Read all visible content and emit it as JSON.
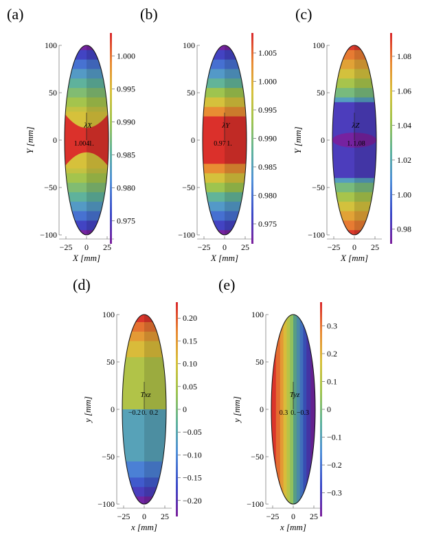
{
  "chart_data": [
    {
      "type": "heatmap",
      "panel_label": "(a)",
      "field": "lambda_X",
      "inset_label": "λX",
      "inset_values": [
        "1.004",
        "1."
      ],
      "xlabel": "X [mm]",
      "ylabel": "Y [mm]",
      "xticks": [
        "−25",
        "0",
        "25"
      ],
      "yticks": [
        "100",
        "50",
        "0",
        "−50",
        "−100"
      ],
      "xlim": [
        -25,
        25
      ],
      "ylim": [
        -100,
        100
      ],
      "colorbar": {
        "ticks": [
          "1.000",
          "0.995",
          "0.990",
          "0.985",
          "0.980",
          "0.975"
        ],
        "tick_values": [
          1.0,
          0.995,
          0.99,
          0.985,
          0.98,
          0.975
        ],
        "range": [
          0.9715,
          1.0035
        ]
      },
      "bands": [
        {
          "y_from": 100,
          "y_to": 95,
          "value": 0.972
        },
        {
          "y_from": 95,
          "y_to": 85,
          "value": 0.9755
        },
        {
          "y_from": 85,
          "y_to": 75,
          "value": 0.979
        },
        {
          "y_from": 75,
          "y_to": 65,
          "value": 0.9825
        },
        {
          "y_from": 65,
          "y_to": 55,
          "value": 0.9855
        },
        {
          "y_from": 55,
          "y_to": 45,
          "value": 0.988
        },
        {
          "y_from": 45,
          "y_to": 35,
          "value": 0.9905
        },
        {
          "y_from": 35,
          "y_to": 30,
          "value": 0.993
        },
        {
          "y_from": 30,
          "y_to": -30,
          "value": 0.9945
        },
        {
          "y_from": -30,
          "y_to": -35,
          "value": 0.993
        },
        {
          "y_from": -35,
          "y_to": -45,
          "value": 0.9905
        },
        {
          "y_from": -45,
          "y_to": -55,
          "value": 0.988
        },
        {
          "y_from": -55,
          "y_to": -65,
          "value": 0.9855
        },
        {
          "y_from": -65,
          "y_to": -75,
          "value": 0.9825
        },
        {
          "y_from": -75,
          "y_to": -85,
          "value": 0.979
        },
        {
          "y_from": -85,
          "y_to": -95,
          "value": 0.9755
        },
        {
          "y_from": -95,
          "y_to": -100,
          "value": 0.972
        }
      ],
      "highlight": {
        "shape": "lens",
        "y_from": 30,
        "y_to": -30,
        "value": 1.003
      }
    },
    {
      "type": "heatmap",
      "panel_label": "(b)",
      "field": "lambda_Y",
      "inset_label": "λY",
      "inset_values": [
        "0.97",
        "1."
      ],
      "xlabel": "X [mm]",
      "ylabel": "",
      "xticks": [
        "−25",
        "0",
        "25"
      ],
      "yticks": [
        "100",
        "50",
        "0",
        "−50",
        "−100"
      ],
      "xlim": [
        -25,
        25
      ],
      "ylim": [
        -100,
        100
      ],
      "colorbar": {
        "ticks": [
          "1.005",
          "1.000",
          "0.995",
          "0.990",
          "0.985",
          "0.980",
          "0.975"
        ],
        "tick_values": [
          1.005,
          1.0,
          0.995,
          0.99,
          0.985,
          0.98,
          0.975
        ],
        "range": [
          0.9715,
          1.0085
        ]
      },
      "bands": [
        {
          "y_from": 100,
          "y_to": 95,
          "value": 0.972
        },
        {
          "y_from": 95,
          "y_to": 85,
          "value": 0.976
        },
        {
          "y_from": 85,
          "y_to": 75,
          "value": 0.98
        },
        {
          "y_from": 75,
          "y_to": 65,
          "value": 0.984
        },
        {
          "y_from": 65,
          "y_to": 55,
          "value": 0.988
        },
        {
          "y_from": 55,
          "y_to": 45,
          "value": 0.993
        },
        {
          "y_from": 45,
          "y_to": 35,
          "value": 0.998
        },
        {
          "y_from": 35,
          "y_to": 25,
          "value": 1.003
        },
        {
          "y_from": 25,
          "y_to": -25,
          "value": 1.008
        },
        {
          "y_from": -25,
          "y_to": -35,
          "value": 1.003
        },
        {
          "y_from": -35,
          "y_to": -45,
          "value": 0.998
        },
        {
          "y_from": -45,
          "y_to": -55,
          "value": 0.993
        },
        {
          "y_from": -55,
          "y_to": -65,
          "value": 0.988
        },
        {
          "y_from": -65,
          "y_to": -75,
          "value": 0.984
        },
        {
          "y_from": -75,
          "y_to": -85,
          "value": 0.98
        },
        {
          "y_from": -85,
          "y_to": -95,
          "value": 0.976
        },
        {
          "y_from": -95,
          "y_to": -100,
          "value": 0.972
        }
      ]
    },
    {
      "type": "heatmap",
      "panel_label": "(c)",
      "field": "lambda_Z",
      "inset_label": "λZ",
      "inset_values": [
        "1.",
        "1.08"
      ],
      "xlabel": "X [mm]",
      "ylabel": "Y [mm]",
      "xticks": [
        "−25",
        "0",
        "25"
      ],
      "yticks": [
        "100",
        "50",
        "0",
        "−50",
        "−100"
      ],
      "xlim": [
        -25,
        25
      ],
      "ylim": [
        -100,
        100
      ],
      "colorbar": {
        "ticks": [
          "1.08",
          "1.06",
          "1.04",
          "1.02",
          "1.00",
          "0.98"
        ],
        "tick_values": [
          1.08,
          1.06,
          1.04,
          1.02,
          1.0,
          0.98
        ],
        "range": [
          0.9715,
          1.0935
        ]
      },
      "bands": [
        {
          "y_from": 100,
          "y_to": 95,
          "value": 1.09
        },
        {
          "y_from": 95,
          "y_to": 85,
          "value": 1.079
        },
        {
          "y_from": 85,
          "y_to": 75,
          "value": 1.069
        },
        {
          "y_from": 75,
          "y_to": 65,
          "value": 1.058
        },
        {
          "y_from": 65,
          "y_to": 55,
          "value": 1.045
        },
        {
          "y_from": 55,
          "y_to": 45,
          "value": 1.032
        },
        {
          "y_from": 45,
          "y_to": 40,
          "value": 1.015
        },
        {
          "y_from": 40,
          "y_to": -40,
          "value": 0.984
        },
        {
          "y_from": -40,
          "y_to": -45,
          "value": 1.015
        },
        {
          "y_from": -45,
          "y_to": -55,
          "value": 1.032
        },
        {
          "y_from": -55,
          "y_to": -65,
          "value": 1.045
        },
        {
          "y_from": -65,
          "y_to": -75,
          "value": 1.058
        },
        {
          "y_from": -75,
          "y_to": -85,
          "value": 1.069
        },
        {
          "y_from": -85,
          "y_to": -95,
          "value": 1.079
        },
        {
          "y_from": -95,
          "y_to": -100,
          "value": 1.09
        }
      ],
      "highlight": {
        "shape": "ellipse",
        "y_from": 5,
        "y_to": -5,
        "value": 0.9715
      }
    },
    {
      "type": "heatmap",
      "panel_label": "(d)",
      "field": "T_xz",
      "inset_label": "Txz",
      "inset_values": [
        "−0.2",
        "0.",
        "0.2"
      ],
      "xlabel": "x [mm]",
      "ylabel": "y [mm]",
      "xticks": [
        "−25",
        "0",
        "25"
      ],
      "yticks": [
        "100",
        "50",
        "0",
        "−50",
        "−100"
      ],
      "xlim": [
        -25,
        25
      ],
      "ylim": [
        -100,
        100
      ],
      "colorbar": {
        "ticks": [
          "0.20",
          "0.15",
          "0.10",
          "0.05",
          "0",
          "−0.05",
          "−0.10",
          "−0.15",
          "−0.20"
        ],
        "tick_values": [
          0.2,
          0.15,
          0.1,
          0.05,
          0,
          -0.05,
          -0.1,
          -0.15,
          -0.2
        ],
        "range": [
          -0.235,
          0.235
        ]
      },
      "bands": [
        {
          "y_from": 100,
          "y_to": 92,
          "value": 0.225
        },
        {
          "y_from": 92,
          "y_to": 82,
          "value": 0.185
        },
        {
          "y_from": 82,
          "y_to": 72,
          "value": 0.15
        },
        {
          "y_from": 72,
          "y_to": 55,
          "value": 0.11
        },
        {
          "y_from": 55,
          "y_to": 0,
          "value": 0.06
        },
        {
          "y_from": 0,
          "y_to": -55,
          "value": -0.06
        },
        {
          "y_from": -55,
          "y_to": -72,
          "value": -0.11
        },
        {
          "y_from": -72,
          "y_to": -82,
          "value": -0.15
        },
        {
          "y_from": -82,
          "y_to": -92,
          "value": -0.185
        },
        {
          "y_from": -92,
          "y_to": -100,
          "value": -0.225
        }
      ]
    },
    {
      "type": "heatmap",
      "panel_label": "(e)",
      "field": "T_yz",
      "inset_label": "Tyz",
      "inset_values": [
        "0.3",
        "0.",
        "−0.3"
      ],
      "xlabel": "x [mm]",
      "ylabel": "y [mm]",
      "xticks": [
        "−25",
        "0",
        "25"
      ],
      "yticks": [
        "100",
        "50",
        "0",
        "−50",
        "−100"
      ],
      "xlim": [
        -25,
        25
      ],
      "ylim": [
        -100,
        100
      ],
      "colorbar": {
        "ticks": [
          "0.3",
          "0.2",
          "0.1",
          "0",
          "−0.1",
          "−0.2",
          "−0.3"
        ],
        "tick_values": [
          0.3,
          0.2,
          0.1,
          0,
          -0.1,
          -0.2,
          -0.3
        ],
        "range": [
          -0.385,
          0.385
        ]
      },
      "vbands": [
        {
          "x_from": -25,
          "x_to": -21,
          "value": 0.37
        },
        {
          "x_from": -21,
          "x_to": -16,
          "value": 0.31
        },
        {
          "x_from": -16,
          "x_to": -12,
          "value": 0.25
        },
        {
          "x_from": -12,
          "x_to": -8,
          "value": 0.18
        },
        {
          "x_from": -8,
          "x_to": -4,
          "value": 0.11
        },
        {
          "x_from": -4,
          "x_to": 0,
          "value": 0.04
        },
        {
          "x_from": 0,
          "x_to": 4,
          "value": -0.04
        },
        {
          "x_from": 4,
          "x_to": 8,
          "value": -0.11
        },
        {
          "x_from": 8,
          "x_to": 12,
          "value": -0.18
        },
        {
          "x_from": 12,
          "x_to": 16,
          "value": -0.25
        },
        {
          "x_from": 16,
          "x_to": 21,
          "value": -0.31
        },
        {
          "x_from": 21,
          "x_to": 25,
          "value": -0.37
        }
      ]
    }
  ]
}
